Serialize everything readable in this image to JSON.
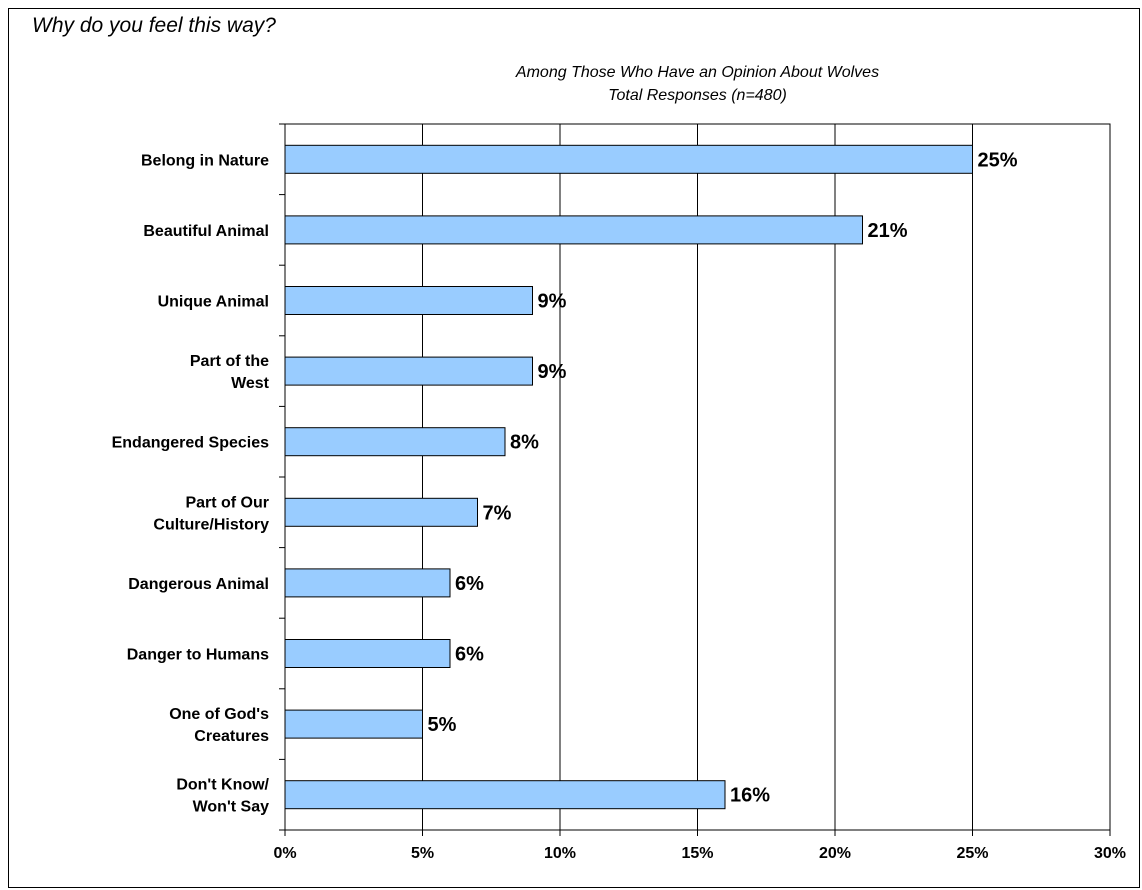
{
  "question": "Why do you feel this way?",
  "subtitle_line1": "Among Those Who Have an Opinion About Wolves",
  "subtitle_line2": "Total Responses (n=480)",
  "colors": {
    "bar_fill": "#99ccff",
    "bar_stroke": "#000000",
    "grid": "#000000"
  },
  "chart_data": {
    "type": "bar",
    "orientation": "horizontal",
    "categories": [
      [
        "Belong in Nature"
      ],
      [
        "Beautiful Animal"
      ],
      [
        "Unique Animal"
      ],
      [
        "Part of the",
        "West"
      ],
      [
        "Endangered Species"
      ],
      [
        "Part of Our",
        "Culture/History"
      ],
      [
        "Dangerous Animal"
      ],
      [
        "Danger to Humans"
      ],
      [
        "One of God's",
        "Creatures"
      ],
      [
        "Don't Know/",
        "Won't Say"
      ]
    ],
    "values": [
      25,
      21,
      9,
      9,
      8,
      7,
      6,
      6,
      5,
      16
    ],
    "value_labels": [
      "25%",
      "21%",
      "9%",
      "9%",
      "8%",
      "7%",
      "6%",
      "6%",
      "5%",
      "16%"
    ],
    "xlim": [
      0,
      30
    ],
    "xticks": [
      0,
      5,
      10,
      15,
      20,
      25,
      30
    ],
    "xtick_labels": [
      "0%",
      "5%",
      "10%",
      "15%",
      "20%",
      "25%",
      "30%"
    ],
    "grid": true
  }
}
